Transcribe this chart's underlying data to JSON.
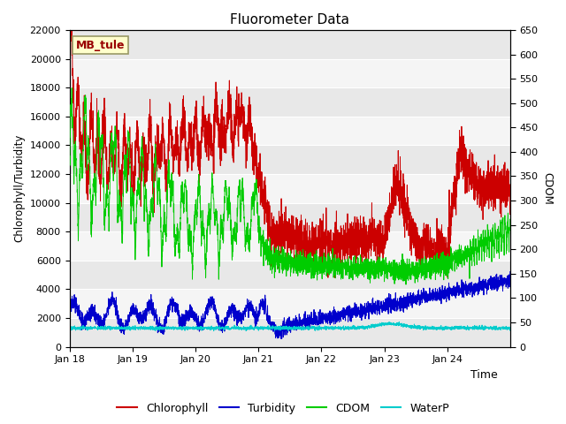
{
  "title": "Fluorometer Data",
  "xlabel": "Time",
  "ylabel_left": "Chlorophyll/Turbidity",
  "ylabel_right": "CDOM",
  "ylim_left": [
    0,
    22000
  ],
  "ylim_right": [
    0,
    650
  ],
  "yticks_left": [
    0,
    2000,
    4000,
    6000,
    8000,
    10000,
    12000,
    14000,
    16000,
    18000,
    20000,
    22000
  ],
  "yticks_right": [
    0,
    50,
    100,
    150,
    200,
    250,
    300,
    350,
    400,
    450,
    500,
    550,
    600,
    650
  ],
  "xtick_labels": [
    "Jan 18",
    "Jan 19",
    "Jan 20",
    "Jan 21",
    "Jan 22",
    "Jan 23",
    "Jan 24"
  ],
  "station_label": "MB_tule",
  "colors": {
    "chlorophyll": "#cc0000",
    "turbidity": "#0000cc",
    "cdom": "#00cc00",
    "waterp": "#00cccc",
    "background_dark": "#e8e8e8",
    "background_light": "#f5f5f5",
    "station_box_bg": "#ffffcc",
    "station_box_border": "#999966",
    "station_text": "#990000"
  },
  "legend_labels": [
    "Chlorophyll",
    "Turbidity",
    "CDOM",
    "WaterP"
  ],
  "seed": 42
}
